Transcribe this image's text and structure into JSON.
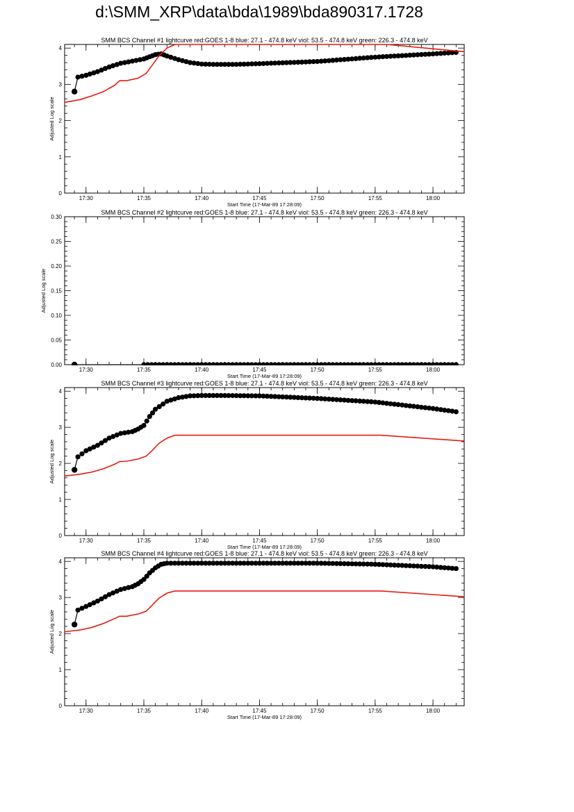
{
  "page": {
    "title": "d:\\SMM_XRP\\data\\bda\\1989\\bda890317.1728"
  },
  "colors": {
    "black_series": "#000000",
    "red_series": "#e8190e"
  },
  "chart_data": [
    {
      "type": "scatter",
      "title": "SMM BCS Channel #1 lightcurve  red:GOES 1-8  blue: 27.1 - 474.8 keV  viol: 53.5 - 474.8 keV  green: 226.3 - 474.8 keV",
      "xlabel": "Start Time (17-Mar-89 17:28:09)",
      "ylabel": "Adjusted Log scale",
      "xticks": [
        "17:30",
        "17:35",
        "17:40",
        "17:45",
        "17:50",
        "17:55",
        "18:00"
      ],
      "yticks": [
        "0",
        "1",
        "2",
        "3",
        "4"
      ],
      "xlim": [
        28.15,
        62.7
      ],
      "ylim": [
        0,
        4.1
      ],
      "grid": false,
      "series": [
        {
          "color": "#000000",
          "marker": "dot",
          "x": [
            29.0,
            29.3,
            30,
            31,
            32,
            33,
            34,
            35,
            35.5,
            36,
            36.5,
            37,
            38,
            39,
            40,
            41,
            42,
            43,
            45,
            50,
            55,
            60,
            62
          ],
          "y": [
            2.8,
            3.2,
            3.25,
            3.35,
            3.48,
            3.58,
            3.64,
            3.7,
            3.76,
            3.82,
            3.84,
            3.78,
            3.68,
            3.6,
            3.56,
            3.55,
            3.55,
            3.55,
            3.57,
            3.63,
            3.75,
            3.84,
            3.88
          ]
        },
        {
          "color": "#e8190e",
          "marker": "none",
          "x": [
            28.15,
            29.5,
            30.5,
            31.5,
            32.5,
            32.9,
            33.5,
            34.5,
            35.2,
            35.7,
            36.3,
            37.0,
            37.7,
            56,
            62.7
          ],
          "y": [
            2.5,
            2.58,
            2.68,
            2.8,
            2.98,
            3.1,
            3.1,
            3.17,
            3.3,
            3.52,
            3.78,
            4.0,
            4.1,
            4.1,
            3.9
          ]
        }
      ]
    },
    {
      "type": "scatter",
      "title": "SMM BCS Channel #2 lightcurve  red:GOES 1-8  blue: 27.1 - 474.8 keV  viol: 53.5 - 474.8 keV  green: 226.3 - 474.8 keV",
      "xlabel": "Start Time (17-Mar-89 17:28:09)",
      "ylabel": "Adjusted Log scale",
      "xticks": [
        "17:30",
        "17:35",
        "17:40",
        "17:45",
        "17:50",
        "17:55",
        "18:00"
      ],
      "yticks": [
        "0.00",
        "0.05",
        "0.10",
        "0.15",
        "0.20",
        "0.25",
        "0.30"
      ],
      "xlim": [
        28.15,
        62.7
      ],
      "ylim": [
        0,
        0.3
      ],
      "grid": false,
      "series": [
        {
          "color": "#000000",
          "marker": "dot",
          "x": [
            29.0,
            35,
            40,
            45,
            50,
            55,
            62
          ],
          "y": [
            0,
            0,
            0,
            0,
            0,
            0,
            0
          ]
        }
      ]
    },
    {
      "type": "scatter",
      "title": "SMM BCS Channel #3 lightcurve  red:GOES 1-8  blue: 27.1 - 474.8 keV  viol: 53.5 - 474.8 keV  green: 226.3 - 474.8 keV",
      "xlabel": "Start Time (17-Mar-89 17:28:09)",
      "ylabel": "Adjusted Log scale",
      "xticks": [
        "17:30",
        "17:35",
        "17:40",
        "17:45",
        "17:50",
        "17:55",
        "18:00"
      ],
      "yticks": [
        "0",
        "1",
        "2",
        "3",
        "4"
      ],
      "xlim": [
        28.15,
        62.7
      ],
      "ylim": [
        0,
        4.1
      ],
      "grid": false,
      "series": [
        {
          "color": "#000000",
          "marker": "dot",
          "x": [
            29.0,
            29.3,
            30,
            31,
            32,
            33,
            34,
            34.5,
            35,
            35.5,
            36,
            37,
            38,
            39,
            40,
            42,
            45,
            50,
            55,
            60,
            62
          ],
          "y": [
            1.82,
            2.18,
            2.35,
            2.5,
            2.7,
            2.83,
            2.88,
            2.95,
            3.05,
            3.3,
            3.5,
            3.72,
            3.82,
            3.87,
            3.88,
            3.88,
            3.87,
            3.8,
            3.7,
            3.52,
            3.43
          ]
        },
        {
          "color": "#e8190e",
          "marker": "none",
          "x": [
            28.15,
            29.5,
            30.5,
            31.5,
            32.5,
            32.9,
            33.5,
            34.5,
            35.2,
            35.7,
            36.3,
            37.0,
            37.7,
            55.5,
            62.7
          ],
          "y": [
            1.65,
            1.7,
            1.76,
            1.85,
            1.98,
            2.05,
            2.06,
            2.12,
            2.2,
            2.35,
            2.55,
            2.7,
            2.78,
            2.78,
            2.62
          ]
        }
      ]
    },
    {
      "type": "scatter",
      "title": "SMM BCS Channel #4 lightcurve  red:GOES 1-8  blue: 27.1 - 474.8 keV  viol: 53.5 - 474.8 keV  green: 226.3 - 474.8 keV",
      "xlabel": "Start Time (17-Mar-89 17:28:09)",
      "ylabel": "Adjusted Log scale",
      "xticks": [
        "17:30",
        "17:35",
        "17:40",
        "17:45",
        "17:50",
        "17:55",
        "18:00"
      ],
      "yticks": [
        "0",
        "1",
        "2",
        "3",
        "4"
      ],
      "xlim": [
        28.15,
        62.7
      ],
      "ylim": [
        0,
        4.1
      ],
      "grid": false,
      "series": [
        {
          "color": "#000000",
          "marker": "dot",
          "x": [
            29.0,
            29.3,
            30,
            31,
            32,
            33,
            34,
            34.5,
            35,
            35.5,
            36,
            36.5,
            37,
            38,
            40,
            45,
            50,
            55,
            60,
            62
          ],
          "y": [
            2.25,
            2.65,
            2.75,
            2.9,
            3.08,
            3.22,
            3.3,
            3.38,
            3.5,
            3.68,
            3.82,
            3.92,
            3.95,
            3.95,
            3.95,
            3.95,
            3.95,
            3.92,
            3.85,
            3.8
          ]
        },
        {
          "color": "#e8190e",
          "marker": "none",
          "x": [
            28.15,
            29.5,
            30.5,
            31.5,
            32.5,
            32.9,
            33.5,
            34.5,
            35.2,
            35.7,
            36.3,
            37.0,
            37.7,
            55.5,
            62.7
          ],
          "y": [
            2.05,
            2.1,
            2.17,
            2.28,
            2.42,
            2.48,
            2.48,
            2.54,
            2.62,
            2.78,
            2.98,
            3.12,
            3.18,
            3.18,
            3.02
          ]
        }
      ]
    }
  ]
}
